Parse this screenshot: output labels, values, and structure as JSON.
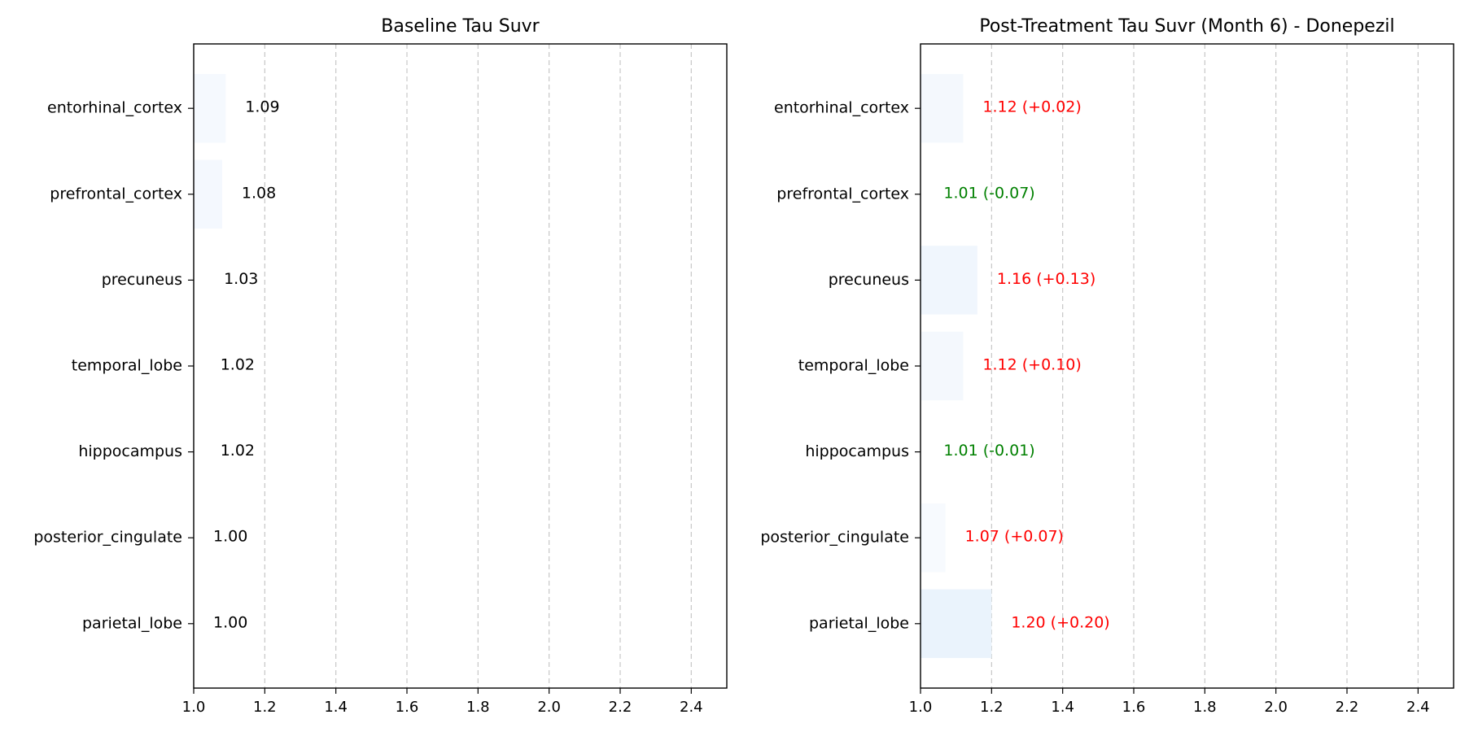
{
  "chart_data": [
    {
      "type": "bar",
      "orientation": "horizontal",
      "title": "Baseline Tau Suvr",
      "xlabel": "",
      "ylabel": "",
      "xlim": [
        1.0,
        2.5
      ],
      "x_ticks": [
        "1.0",
        "1.2",
        "1.4",
        "1.6",
        "1.8",
        "2.0",
        "2.2",
        "2.4"
      ],
      "grid": "vertical dashed",
      "categories": [
        "entorhinal_cortex",
        "prefrontal_cortex",
        "precuneus",
        "temporal_lobe",
        "hippocampus",
        "posterior_cingulate",
        "parietal_lobe"
      ],
      "values": [
        1.09,
        1.08,
        1.03,
        1.02,
        1.02,
        1.0,
        1.0
      ],
      "value_labels": [
        "1.09",
        "1.08",
        "1.03",
        "1.02",
        "1.02",
        "1.00",
        "1.00"
      ],
      "label_colors": [
        "#000000",
        "#000000",
        "#000000",
        "#000000",
        "#000000",
        "#000000",
        "#000000"
      ],
      "bar_colors": [
        "#f5f9fe",
        "#f4f8fe",
        "#ffffff",
        "#ffffff",
        "#ffffff",
        "#ffffff",
        "#ffffff"
      ]
    },
    {
      "type": "bar",
      "orientation": "horizontal",
      "title": "Post-Treatment Tau Suvr (Month 6) - Donepezil",
      "xlabel": "",
      "ylabel": "",
      "xlim": [
        1.0,
        2.5
      ],
      "x_ticks": [
        "1.0",
        "1.2",
        "1.4",
        "1.6",
        "1.8",
        "2.0",
        "2.2",
        "2.4"
      ],
      "grid": "vertical dashed",
      "categories": [
        "entorhinal_cortex",
        "prefrontal_cortex",
        "precuneus",
        "temporal_lobe",
        "hippocampus",
        "posterior_cingulate",
        "parietal_lobe"
      ],
      "values": [
        1.12,
        1.01,
        1.16,
        1.12,
        1.01,
        1.07,
        1.2
      ],
      "value_labels": [
        "1.12 (+0.02)",
        "1.01 (-0.07)",
        "1.16 (+0.13)",
        "1.12 (+0.10)",
        "1.01 (-0.01)",
        "1.07 (+0.07)",
        "1.20 (+0.20)"
      ],
      "label_colors": [
        "#ff0000",
        "#008000",
        "#ff0000",
        "#ff0000",
        "#008000",
        "#ff0000",
        "#ff0000"
      ],
      "bar_colors": [
        "#f4f8fd",
        "#ffffff",
        "#f0f6fd",
        "#f4f8fd",
        "#ffffff",
        "#f7fafe",
        "#eaf3fc"
      ]
    }
  ]
}
